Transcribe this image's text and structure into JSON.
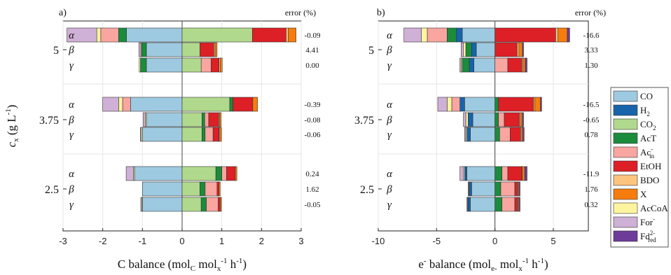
{
  "colors": {
    "CO": "#9ecae1",
    "H2": "#1764ab",
    "CO2": "#b1d98d",
    "AcT": "#1a8c3c",
    "Ac_in": "#f9a5a0",
    "EtOH": "#dd1f26",
    "BDO": "#fdc47e",
    "X": "#f67d0d",
    "AcCoA": "#fef4a0",
    "For": "#cfb0d6",
    "Fd": "#6d3c9a"
  },
  "legend": {
    "items": [
      {
        "key": "CO",
        "label": "CO",
        "sub": "",
        "sup": ""
      },
      {
        "key": "H2",
        "label": "H",
        "sub": "2",
        "sup": ""
      },
      {
        "key": "CO2",
        "label": "CO",
        "sub": "2",
        "sup": ""
      },
      {
        "key": "AcT",
        "label": "AcT",
        "sub": "",
        "sup": ""
      },
      {
        "key": "Ac_in",
        "label": "Ac",
        "sub": "in",
        "sup": "-"
      },
      {
        "key": "EtOH",
        "label": "EtOH",
        "sub": "",
        "sup": ""
      },
      {
        "key": "BDO",
        "label": "BDO",
        "sub": "",
        "sup": ""
      },
      {
        "key": "X",
        "label": "X",
        "sub": "",
        "sup": ""
      },
      {
        "key": "AcCoA",
        "label": "AcCoA",
        "sub": "",
        "sup": ""
      },
      {
        "key": "For",
        "label": "For",
        "sub": "",
        "sup": "-"
      },
      {
        "key": "Fd",
        "label": "Fd",
        "sub": "red",
        "sup": "2-"
      }
    ]
  },
  "shared": {
    "ylabel": {
      "c": "c",
      "x": "x",
      "unit_open": " (g L",
      "exp": "-1",
      "unit_close": ")"
    },
    "conc_labels": [
      "5",
      "3.75",
      "2.5"
    ],
    "row_labels": [
      "α",
      "β",
      "γ"
    ],
    "error_header": "error (%)"
  },
  "panels": [
    {
      "letter": "a)",
      "xlabel": {
        "main": "C balance (mol",
        "sub1": "C",
        "mid1": " mol",
        "sub2": "x",
        "sup2": "-1",
        "mid2": " h",
        "sup3": "-1",
        "end": ")"
      },
      "xlim": [
        -3,
        3
      ],
      "xticks": [
        -3,
        -2,
        -1,
        0,
        1,
        2,
        3
      ],
      "xtick_labels": [
        "-3",
        "-2",
        "-1",
        "0",
        "1",
        "2",
        "3"
      ],
      "errors": [
        "-0.09",
        "4.41",
        "0.00",
        "-0.39",
        "-0.08",
        "-0.06",
        "0.24",
        "1.62",
        "-0.05"
      ]
    },
    {
      "letter": "b)",
      "xlabel": {
        "main": "e",
        "sup0": "-",
        "main2": " balance (mol",
        "sub1": "e-",
        "mid1": " mol",
        "sub2": "x",
        "sup2": "-1",
        "mid2": " h",
        "sup3": "-1",
        "end": ")"
      },
      "xlim": [
        -10,
        8
      ],
      "xticks": [
        -10,
        -5,
        0,
        5
      ],
      "xtick_labels": [
        "-10",
        "-5",
        "0",
        "5"
      ],
      "errors": [
        "-16.6",
        "3.33",
        "1.30",
        "-16.5",
        "-0.65",
        "0.78",
        "-11.9",
        "1.76",
        "0.32"
      ]
    }
  ],
  "chart_data": [
    {
      "type": "bar",
      "orientation": "horizontal-stacked-diverging",
      "title": "a)",
      "xlabel": "C balance (mol_C mol_x^-1 h^-1)",
      "ylabel": "c_x (g L^-1)",
      "xlim": [
        -3,
        3
      ],
      "grid": true,
      "categories": [
        {
          "cx": "5",
          "row": "α"
        },
        {
          "cx": "5",
          "row": "β"
        },
        {
          "cx": "5",
          "row": "γ"
        },
        {
          "cx": "3.75",
          "row": "α"
        },
        {
          "cx": "3.75",
          "row": "β"
        },
        {
          "cx": "3.75",
          "row": "γ"
        },
        {
          "cx": "2.5",
          "row": "α"
        },
        {
          "cx": "2.5",
          "row": "β"
        },
        {
          "cx": "2.5",
          "row": "γ"
        }
      ],
      "series": [
        {
          "name": "CO",
          "values": [
            -1.4,
            -0.9,
            -0.9,
            -1.3,
            -0.9,
            -1.0,
            -1.2,
            -1.0,
            -1.0
          ]
        },
        {
          "name": "CO2",
          "values": [
            1.77,
            0.45,
            0.48,
            1.2,
            0.5,
            0.5,
            0.85,
            0.45,
            0.48
          ]
        },
        {
          "name": "AcT",
          "values": [
            -0.2,
            -0.12,
            -0.15,
            0.08,
            0.07,
            0.08,
            0.15,
            0.13,
            0.13
          ]
        },
        {
          "name": "Ac_in",
          "values": [
            -0.45,
            0.0,
            0.25,
            -0.2,
            0.1,
            0.2,
            0.12,
            0.3,
            0.3
          ]
        },
        {
          "name": "EtOH",
          "values": [
            0.85,
            0.35,
            0.2,
            0.5,
            0.25,
            0.15,
            0.22,
            0.05,
            0.05
          ]
        },
        {
          "name": "BDO",
          "values": [
            0.05,
            0.03,
            0.03,
            0.0,
            0.02,
            0.02,
            0.0,
            0.0,
            0.0
          ]
        },
        {
          "name": "X",
          "values": [
            0.2,
            0.05,
            0.05,
            0.12,
            0.04,
            0.04,
            0.04,
            0.03,
            0.03
          ]
        },
        {
          "name": "AcCoA",
          "values": [
            -0.1,
            -0.02,
            -0.03,
            -0.1,
            -0.03,
            -0.03,
            -0.03,
            0.0,
            -0.02
          ]
        },
        {
          "name": "For",
          "values": [
            -0.75,
            -0.05,
            0.0,
            -0.4,
            -0.05,
            -0.02,
            -0.18,
            0.0,
            -0.02
          ]
        }
      ],
      "errors_percent": [
        -0.09,
        4.41,
        0.0,
        -0.39,
        -0.08,
        -0.06,
        0.24,
        1.62,
        -0.05
      ]
    },
    {
      "type": "bar",
      "orientation": "horizontal-stacked-diverging",
      "title": "b)",
      "xlabel": "e^- balance (mol_e- mol_x^-1 h^-1)",
      "ylabel": "c_x (g L^-1)",
      "xlim": [
        -10,
        8
      ],
      "grid": true,
      "categories": [
        {
          "cx": "5",
          "row": "α"
        },
        {
          "cx": "5",
          "row": "β"
        },
        {
          "cx": "5",
          "row": "γ"
        },
        {
          "cx": "3.75",
          "row": "α"
        },
        {
          "cx": "3.75",
          "row": "β"
        },
        {
          "cx": "3.75",
          "row": "γ"
        },
        {
          "cx": "2.5",
          "row": "α"
        },
        {
          "cx": "2.5",
          "row": "β"
        },
        {
          "cx": "2.5",
          "row": "γ"
        }
      ],
      "series": [
        {
          "name": "CO",
          "values": [
            -2.8,
            -1.6,
            -1.8,
            -2.6,
            -1.9,
            -2.1,
            -2.4,
            -2.0,
            -2.1
          ]
        },
        {
          "name": "H2",
          "values": [
            -0.5,
            -0.4,
            -0.4,
            -0.4,
            -0.4,
            -0.3,
            -0.2,
            -0.2,
            -0.2
          ]
        },
        {
          "name": "AcT",
          "values": [
            -0.8,
            -0.5,
            -0.6,
            0.3,
            0.3,
            0.4,
            0.6,
            0.5,
            0.6
          ]
        },
        {
          "name": "Ac_in",
          "values": [
            -1.7,
            0.0,
            1.1,
            -0.7,
            0.5,
            0.9,
            0.5,
            1.2,
            1.1
          ]
        },
        {
          "name": "EtOH",
          "values": [
            5.2,
            1.9,
            1.2,
            3.0,
            1.3,
            0.9,
            1.2,
            0.2,
            0.2
          ]
        },
        {
          "name": "BDO",
          "values": [
            0.2,
            0.15,
            0.1,
            0.1,
            0.1,
            0.1,
            0.05,
            0.05,
            0.05
          ]
        },
        {
          "name": "X",
          "values": [
            0.8,
            0.3,
            0.2,
            0.5,
            0.15,
            0.1,
            0.2,
            0.1,
            0.1
          ]
        },
        {
          "name": "AcCoA",
          "values": [
            -0.5,
            -0.2,
            -0.1,
            -0.4,
            -0.2,
            -0.1,
            -0.1,
            -0.05,
            -0.05
          ]
        },
        {
          "name": "For",
          "values": [
            -1.5,
            -0.2,
            -0.1,
            -0.8,
            -0.2,
            -0.1,
            -0.3,
            -0.05,
            -0.05
          ]
        },
        {
          "name": "Fd",
          "values": [
            0.2,
            0.1,
            0.15,
            0.1,
            0.1,
            0.1,
            0.2,
            0.1,
            0.1
          ]
        }
      ],
      "errors_percent": [
        -16.6,
        3.33,
        1.3,
        -16.5,
        -0.65,
        0.78,
        -11.9,
        1.76,
        0.32
      ]
    }
  ]
}
